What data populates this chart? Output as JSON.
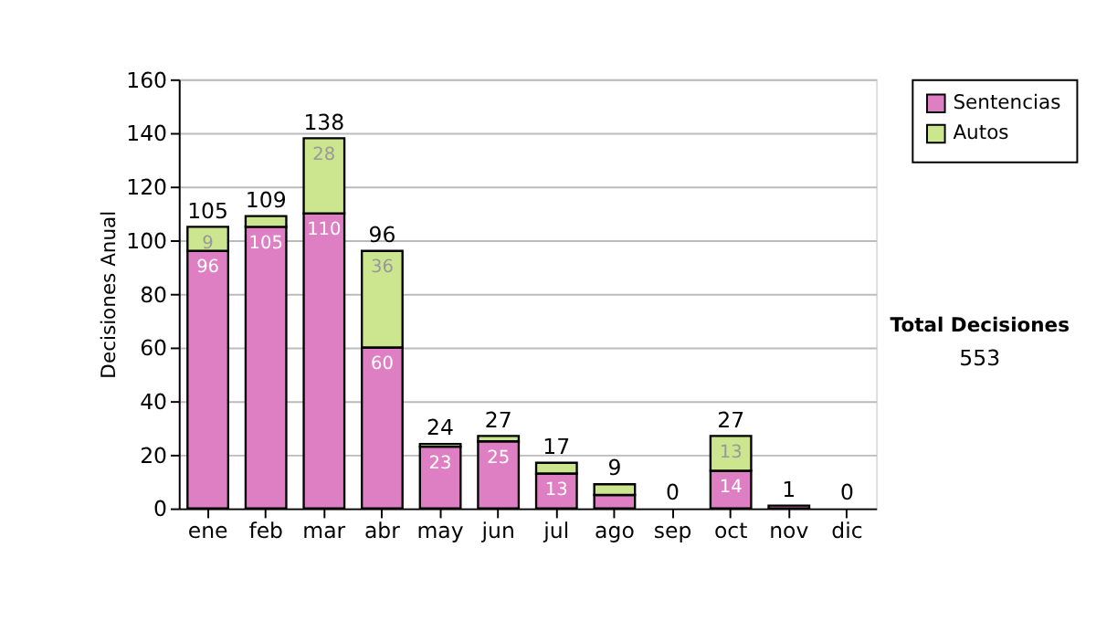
{
  "chart_data": {
    "type": "bar",
    "stacked": true,
    "ylabel": "Decisiones Anual",
    "categories": [
      "ene",
      "feb",
      "mar",
      "abr",
      "may",
      "jun",
      "jul",
      "ago",
      "sep",
      "oct",
      "nov",
      "dic"
    ],
    "series": [
      {
        "name": "Sentencias",
        "color": "#df7fc3",
        "values": [
          96,
          105,
          110,
          60,
          23,
          25,
          13,
          5,
          0,
          14,
          1,
          0
        ],
        "value_labels": [
          "96",
          "105",
          "110",
          "60",
          "23",
          "25",
          "13",
          null,
          null,
          "14",
          null,
          null
        ]
      },
      {
        "name": "Autos",
        "color": "#cce58f",
        "values": [
          9,
          4,
          28,
          36,
          1,
          2,
          4,
          4,
          0,
          13,
          0,
          0
        ],
        "value_labels": [
          "9",
          null,
          "28",
          "36",
          null,
          null,
          null,
          null,
          null,
          "13",
          null,
          null
        ]
      }
    ],
    "totals": [
      "105",
      "109",
      "138",
      "96",
      "24",
      "27",
      "17",
      "9",
      "0",
      "27",
      "1",
      "0"
    ],
    "ylim": [
      0,
      160
    ],
    "yticks": [
      0,
      20,
      40,
      60,
      80,
      100,
      120,
      140,
      160
    ],
    "grid": "y",
    "legend": "right",
    "annotations": [
      "Total Decisiones",
      "553"
    ]
  }
}
